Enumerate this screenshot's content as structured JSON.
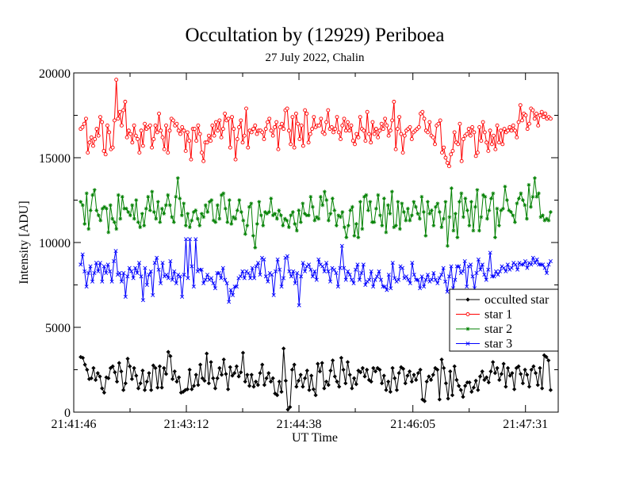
{
  "chart_data": {
    "type": "line",
    "title": "Occultation by (12929) Periboea",
    "subtitle": "27 July 2022, Chalin",
    "xlabel": "UT Time",
    "ylabel": "Intensity [ADU]",
    "x_tick_labels": [
      "21:41:46",
      "21:43:12",
      "21:44:38",
      "21:46:05",
      "21:47:31"
    ],
    "y_tick_labels": [
      "0",
      "5000",
      "10000",
      "15000",
      "20000"
    ],
    "x_tick_seconds": [
      0,
      86,
      172,
      259,
      345
    ],
    "xlim": [
      0,
      370
    ],
    "ylim": [
      0,
      20000
    ],
    "legend_position": "lower-right",
    "grid": false,
    "sample_interval_s": 1.28,
    "series": [
      {
        "name": "occulted star",
        "color": "#000000",
        "marker": "diamond",
        "values": [
          3250,
          3200,
          2800,
          2500,
          1950,
          2000,
          2600,
          1900,
          2300,
          2100,
          1400,
          1150,
          2050,
          2000,
          2600,
          2700,
          2350,
          1800,
          2900,
          2400,
          1300,
          1700,
          3150,
          2700,
          1950,
          2600,
          2150,
          1400,
          1700,
          2450,
          1300,
          1800,
          2300,
          1300,
          2750,
          2600,
          1450,
          2700,
          1450,
          2600,
          2250,
          3550,
          3300,
          1950,
          2400,
          1800,
          2050,
          1150,
          1200,
          1300,
          1350,
          2500,
          1350,
          1550,
          2200,
          1600,
          2800,
          2000,
          1850,
          3450,
          1700,
          2950,
          2000,
          1400,
          2000,
          2600,
          2200,
          3100,
          2250,
          1350,
          2650,
          2150,
          2300,
          2700,
          2100,
          2350,
          3500,
          1800,
          2200,
          1550,
          2200,
          1500,
          1800,
          1600,
          2300,
          2800,
          1600,
          2000,
          2300,
          1800,
          2000,
          1100,
          1000,
          1800,
          1200,
          3750,
          1850,
          150,
          300,
          2500,
          2800,
          1500,
          1850,
          2200,
          1500,
          2000,
          2450,
          1300,
          2150,
          1350,
          1000,
          2850,
          2400,
          2900,
          1400,
          1800,
          1600,
          2450,
          3050,
          2100,
          1800,
          1500,
          3200,
          2500,
          1700,
          2950,
          2200,
          1400,
          2000,
          1650,
          2450,
          2350,
          2600,
          2100,
          2500,
          1900,
          1800,
          2600,
          2400,
          2600,
          2500,
          1700,
          2150,
          1300,
          1800,
          1200,
          2600,
          2000,
          1300,
          2300,
          2650,
          2550,
          1700,
          2150,
          2400,
          1800,
          2200,
          1900,
          2300,
          2500,
          750,
          650,
          1800,
          2100,
          1900,
          2200,
          2600,
          2500,
          750,
          3100,
          2600,
          1700,
          800,
          2400,
          1000,
          2700,
          1900,
          1550,
          1300,
          900,
          1550,
          1750,
          1750,
          1200,
          1450,
          1850,
          1300,
          2100,
          2400,
          1900,
          2050,
          1750,
          2400,
          2950,
          2300,
          2600,
          1900,
          2250,
          2850,
          1500,
          2600,
          2150,
          2300,
          1350,
          2600,
          2700,
          2250,
          1700,
          2500,
          2200,
          1500,
          2500,
          2700,
          2300,
          1600,
          2600,
          1400,
          3350,
          3250,
          3050,
          1300
        ]
      },
      {
        "name": "star 1",
        "color": "#ff0000",
        "marker": "circle",
        "values": [
          16700,
          16800,
          17000,
          17300,
          15300,
          15900,
          16200,
          15700,
          16100,
          16700,
          16300,
          17400,
          17100,
          15400,
          15200,
          16900,
          16500,
          15500,
          15600,
          17200,
          19600,
          17300,
          17700,
          16900,
          17800,
          18300,
          16200,
          16600,
          16400,
          15900,
          16900,
          16300,
          16100,
          15300,
          16600,
          15700,
          17000,
          16700,
          16800,
          16900,
          15600,
          16100,
          16900,
          16500,
          17600,
          16600,
          16200,
          15500,
          16900,
          15300,
          16600,
          17300,
          17200,
          16900,
          17000,
          16600,
          16400,
          16800,
          16600,
          15400,
          16500,
          16000,
          14900,
          16700,
          16700,
          16000,
          16900,
          16400,
          15300,
          14800,
          15900,
          15900,
          16300,
          16000,
          16900,
          16300,
          17100,
          16600,
          17200,
          16200,
          16700,
          17600,
          17200,
          17300,
          15600,
          17400,
          16700,
          14900,
          16100,
          16800,
          17200,
          15900,
          16300,
          17900,
          15600,
          16600,
          16500,
          16700,
          16900,
          16400,
          16600,
          16600,
          16500,
          16100,
          16700,
          17100,
          17300,
          16600,
          16300,
          16800,
          17100,
          15500,
          16800,
          17000,
          16700,
          17800,
          17900,
          16600,
          15800,
          17400,
          15600,
          17600,
          17000,
          16100,
          16900,
          15700,
          17800,
          17600,
          15900,
          16400,
          16700,
          17400,
          16800,
          16900,
          16900,
          17300,
          16500,
          16400,
          17100,
          17800,
          16700,
          16800,
          16500,
          16700,
          17400,
          16500,
          16100,
          16900,
          17300,
          16600,
          17100,
          16600,
          16900,
          16000,
          15800,
          16400,
          16200,
          17400,
          16700,
          16600,
          16000,
          17700,
          16400,
          15900,
          17100,
          16400,
          16700,
          16200,
          16600,
          17000,
          16700,
          17300,
          16900,
          16300,
          16600,
          17200,
          18300,
          15500,
          16700,
          17400,
          16400,
          15300,
          16300,
          16600,
          16700,
          16800,
          16100,
          16500,
          16600,
          16700,
          16800,
          17600,
          17700,
          17300,
          16600,
          16500,
          17100,
          16300,
          16200,
          15800,
          16900,
          17000,
          17200,
          15300,
          15600,
          15000,
          14700,
          14500,
          15200,
          15400,
          16500,
          15900,
          15800,
          17000,
          14800,
          16100,
          16300,
          16400,
          16700,
          16300,
          16800,
          16500,
          15100,
          15300,
          16800,
          16000,
          17100,
          16500,
          15900,
          15400,
          16600,
          15800,
          16300,
          15500,
          16900,
          15900,
          16600,
          15800,
          16700,
          16500,
          16600,
          16800,
          16600,
          16900,
          16600,
          16200,
          17100,
          18100,
          17200,
          17600,
          17500,
          16700,
          17000,
          17900,
          17800,
          17300,
          17600,
          16900,
          17500,
          17700,
          17400,
          17600,
          17300,
          17400,
          17300
        ],
        "values_note": ""
      },
      {
        "name": "star 2",
        "color": "#008000",
        "marker": "star",
        "values": [
          12400,
          12200,
          11100,
          12900,
          10800,
          11900,
          12800,
          13100,
          11900,
          11600,
          11300,
          12000,
          12100,
          12000,
          10600,
          12200,
          11400,
          11200,
          10800,
          12800,
          11400,
          12700,
          12000,
          12000,
          11800,
          11600,
          12200,
          11400,
          12500,
          11200,
          10900,
          11700,
          11000,
          12000,
          12700,
          11900,
          13000,
          11800,
          11400,
          12400,
          11200,
          12000,
          11700,
          12200,
          12800,
          12200,
          11500,
          11200,
          12700,
          13800,
          12600,
          11600,
          12300,
          11000,
          11700,
          10900,
          11300,
          11800,
          11900,
          11400,
          11000,
          11700,
          11500,
          12200,
          11800,
          12400,
          12500,
          11300,
          11200,
          12200,
          11400,
          12800,
          12900,
          12000,
          11200,
          12500,
          11100,
          11500,
          11400,
          11900,
          12500,
          11800,
          11300,
          10500,
          11000,
          12100,
          12300,
          10400,
          9700,
          11100,
          12400,
          11600,
          11000,
          11800,
          11700,
          11800,
          12600,
          11600,
          11700,
          11400,
          11900,
          11600,
          11000,
          11400,
          11300,
          10900,
          11600,
          11800,
          11100,
          10700,
          11900,
          11200,
          12300,
          11700,
          11600,
          11600,
          12700,
          12100,
          11300,
          11500,
          11400,
          12700,
          12200,
          13000,
          12500,
          11300,
          11700,
          12600,
          11900,
          11000,
          11600,
          11500,
          11800,
          10900,
          10300,
          11000,
          11900,
          12100,
          10400,
          11100,
          10300,
          12400,
          10800,
          12700,
          12800,
          11900,
          12400,
          11200,
          11200,
          12000,
          12800,
          11600,
          11000,
          12600,
          10600,
          12200,
          11700,
          13000,
          10900,
          11000,
          12400,
          10800,
          12300,
          11800,
          11300,
          12000,
          11300,
          11600,
          12400,
          12100,
          11700,
          11400,
          12700,
          11800,
          10400,
          12400,
          11700,
          11900,
          11000,
          12100,
          12300,
          11800,
          10900,
          11400,
          12400,
          9800,
          11500,
          13200,
          10700,
          11700,
          10300,
          12400,
          12900,
          11500,
          12600,
          11900,
          11000,
          12400,
          10700,
          12100,
          13100,
          10700,
          11500,
          12800,
          12700,
          11400,
          11900,
          12600,
          12900,
          10300,
          12000,
          11000,
          11900,
          12000,
          13300,
          12500,
          11900,
          11800,
          11600,
          11200,
          12300,
          12600,
          12900,
          12500,
          12200,
          11400,
          13400,
          12100,
          12700,
          13800,
          12700,
          12900,
          11500,
          11600,
          11300,
          11400,
          11300,
          11800
        ],
        "values_note": ""
      },
      {
        "name": "star 3",
        "color": "#0000ff",
        "marker": "x",
        "values": [
          8700,
          9300,
          8300,
          7400,
          8200,
          8600,
          7700,
          8200,
          8800,
          8300,
          8800,
          7700,
          8600,
          8200,
          8700,
          8300,
          7700,
          8900,
          9500,
          8100,
          8200,
          7700,
          8200,
          6800,
          8000,
          8500,
          8300,
          7900,
          8500,
          8200,
          8800,
          8000,
          6600,
          8500,
          7500,
          8100,
          8300,
          6900,
          8800,
          9100,
          8400,
          7600,
          8800,
          8000,
          8100,
          7900,
          8900,
          7800,
          8300,
          7600,
          8100,
          8000,
          6800,
          8100,
          10200,
          7900,
          10200,
          8600,
          7400,
          10200,
          8300,
          8400,
          8400,
          7600,
          7800,
          8100,
          7800,
          7900,
          7600,
          7300,
          8200,
          8200,
          7900,
          8500,
          7800,
          7600,
          6500,
          7200,
          6900,
          7400,
          7400,
          7900,
          8000,
          8300,
          7900,
          8300,
          8200,
          7900,
          8500,
          7900,
          8600,
          8800,
          8100,
          9100,
          9000,
          8000,
          7700,
          8200,
          8100,
          6900,
          8300,
          9000,
          8400,
          7400,
          7900,
          9100,
          9200,
          8300,
          8000,
          8300,
          7600,
          8200,
          6300,
          8000,
          8800,
          8300,
          8600,
          8700,
          8400,
          8000,
          8300,
          7800,
          9000,
          8700,
          8600,
          8300,
          8800,
          8300,
          7700,
          8500,
          8400,
          8200,
          7400,
          8500,
          9800,
          8500,
          7800,
          8300,
          8100,
          7800,
          7600,
          8400,
          8700,
          7800,
          8200,
          8700,
          7500,
          7700,
          7800,
          8300,
          7400,
          7800,
          8000,
          8300,
          7800,
          7400,
          7400,
          7200,
          8100,
          7300,
          8800,
          7900,
          7700,
          7800,
          8600,
          8500,
          7900,
          8000,
          7800,
          7600,
          8800,
          8100,
          7800,
          7800,
          7300,
          8000,
          7400,
          7800,
          8100,
          7700,
          7800,
          8200,
          7800,
          7600,
          7900,
          8100,
          8500,
          7700,
          7100,
          8000,
          8600,
          7300,
          7800,
          8600,
          8600,
          8200,
          8300,
          8900,
          7400,
          8600,
          8700,
          8000,
          7300,
          8200,
          9000,
          8400,
          8700,
          8100,
          7800,
          8400,
          9400,
          8000,
          8000,
          8300,
          8100,
          8300,
          8600,
          8500,
          8300,
          8700,
          8400,
          8500,
          8800,
          8700,
          8400,
          8800,
          8700,
          8700,
          8900,
          8500,
          8800,
          8700,
          9100,
          8800,
          9000,
          8700,
          8700,
          8700,
          8500,
          8200,
          8700,
          8900
        ]
      }
    ]
  }
}
